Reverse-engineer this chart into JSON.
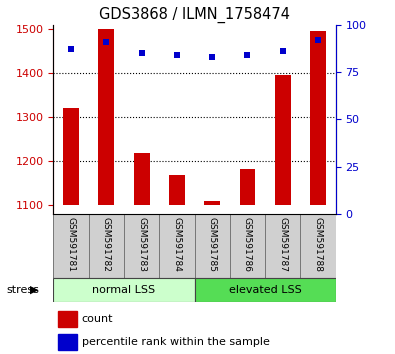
{
  "title": "GDS3868 / ILMN_1758474",
  "samples": [
    "GSM591781",
    "GSM591782",
    "GSM591783",
    "GSM591784",
    "GSM591785",
    "GSM591786",
    "GSM591787",
    "GSM591788"
  ],
  "counts": [
    1320,
    1500,
    1220,
    1168,
    1110,
    1183,
    1395,
    1497
  ],
  "percentile_ranks": [
    87,
    91,
    85,
    84,
    83,
    84,
    86,
    92
  ],
  "ylim_left": [
    1080,
    1510
  ],
  "ylim_right": [
    0,
    100
  ],
  "yticks_left": [
    1100,
    1200,
    1300,
    1400,
    1500
  ],
  "yticks_right": [
    0,
    25,
    50,
    75,
    100
  ],
  "bar_color": "#cc0000",
  "dot_color": "#0000cc",
  "group1_label": "normal LSS",
  "group2_label": "elevated LSS",
  "group1_indices": [
    0,
    1,
    2,
    3
  ],
  "group2_indices": [
    4,
    5,
    6,
    7
  ],
  "group1_color": "#ccffcc",
  "group2_color": "#55dd55",
  "stress_label": "stress",
  "legend_count_label": "count",
  "legend_pct_label": "percentile rank within the sample",
  "tick_label_color_left": "#cc0000",
  "tick_label_color_right": "#0000cc",
  "bar_bottom": 1100,
  "background_color": "#ffffff",
  "label_box_color": "#d0d0d0",
  "label_box_edge": "#888888",
  "grid_lines": [
    1200,
    1300,
    1400
  ]
}
